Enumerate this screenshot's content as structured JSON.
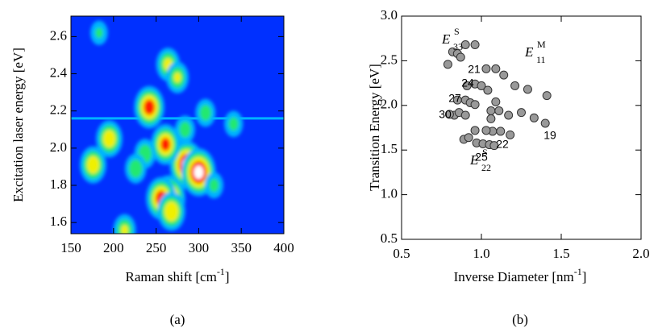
{
  "chart_data": [
    {
      "type": "heatmap",
      "xlabel": {
        "text": "Raman shift [cm",
        "sup": "-1",
        "end": "]"
      },
      "ylabel": "Excitation laser energy [eV]",
      "caption": "(a)",
      "xlim": [
        150,
        400
      ],
      "xticks": [
        150,
        200,
        250,
        300,
        350,
        400
      ],
      "ylim": [
        1.54,
        2.71
      ],
      "yticks": [
        1.6,
        1.8,
        {
          "value": 2,
          "label": "2.0"
        },
        2.2,
        2.4,
        2.6
      ],
      "background": "#0030ff",
      "colormap": [
        "#0030ff",
        "#00b4ff",
        "#20e870",
        "#f0f000",
        "#ff1a00",
        "#ffffff"
      ],
      "laser_line": 2.16,
      "spots": {
        "x": [
          183,
          242,
          176,
          195,
          286,
          300,
          261,
          265,
          256,
          268,
          213,
          237,
          264,
          275,
          308,
          341,
          226,
          318,
          284
        ],
        "y": [
          2.62,
          2.22,
          1.91,
          2.05,
          1.91,
          1.87,
          2.02,
          1.73,
          1.73,
          1.66,
          1.56,
          1.97,
          2.45,
          2.38,
          2.19,
          2.13,
          1.89,
          1.8,
          2.1
        ],
        "intensity": [
          0.3,
          0.8,
          0.65,
          0.65,
          0.95,
          0.95,
          0.75,
          0.9,
          0.8,
          0.7,
          0.5,
          0.45,
          0.55,
          0.5,
          0.4,
          0.35,
          0.45,
          0.35,
          0.4
        ]
      }
    },
    {
      "type": "scatter",
      "xlabel": {
        "text": "Inverse Diameter [nm",
        "sup": "-1",
        "end": "]"
      },
      "ylabel": "Transition Energy [eV]",
      "caption": "(b)",
      "xlim": [
        0.5,
        2.0
      ],
      "xticks": [
        0.5,
        {
          "value": 1,
          "label": "1.0"
        },
        1.5,
        {
          "value": 2,
          "label": "2.0"
        }
      ],
      "ylim": [
        0.5,
        3.0
      ],
      "yticks": [
        0.5,
        {
          "value": 1,
          "label": "1.0"
        },
        1.5,
        {
          "value": 2,
          "label": "2.0"
        },
        2.5,
        {
          "value": 3,
          "label": "3.0"
        }
      ],
      "series": [
        {
          "color": "#999999",
          "x": [
            0.9,
            0.96,
            0.82,
            0.85,
            0.87,
            0.79,
            1.03,
            1.09,
            1.14,
            1.21,
            1.29,
            1.41,
            0.91,
            0.96,
            1.0,
            1.04,
            0.9,
            0.85,
            0.93,
            0.96,
            0.83,
            0.8,
            0.86,
            0.9,
            1.09,
            1.06,
            1.11,
            1.17,
            1.06,
            1.33,
            1.4,
            1.25,
            1.07,
            1.03,
            1.12,
            1.18,
            0.96,
            0.89,
            0.92,
            0.97,
            1.01,
            1.05,
            1.08
          ],
          "values": [
            2.68,
            2.68,
            2.6,
            2.58,
            2.54,
            2.46,
            2.41,
            2.41,
            2.34,
            2.22,
            2.18,
            2.11,
            2.22,
            2.24,
            2.22,
            2.17,
            2.06,
            2.06,
            2.03,
            2.01,
            1.89,
            1.9,
            1.92,
            1.89,
            2.04,
            1.94,
            1.94,
            1.89,
            1.85,
            1.86,
            1.8,
            1.92,
            1.71,
            1.72,
            1.71,
            1.67,
            1.72,
            1.62,
            1.64,
            1.58,
            1.57,
            1.56,
            1.55
          ]
        }
      ],
      "annotations": [
        {
          "main": "E",
          "sub": "33",
          "sup": "S"
        },
        {
          "main": "E",
          "sub": "11",
          "sup": "M"
        },
        {
          "main": "E",
          "sub": "22",
          "sup": "S"
        },
        {
          "text": "21"
        },
        {
          "text": "24"
        },
        {
          "text": "27"
        },
        {
          "text": "30"
        },
        {
          "text": "22"
        },
        {
          "text": "19"
        },
        {
          "text": "25"
        }
      ]
    }
  ]
}
